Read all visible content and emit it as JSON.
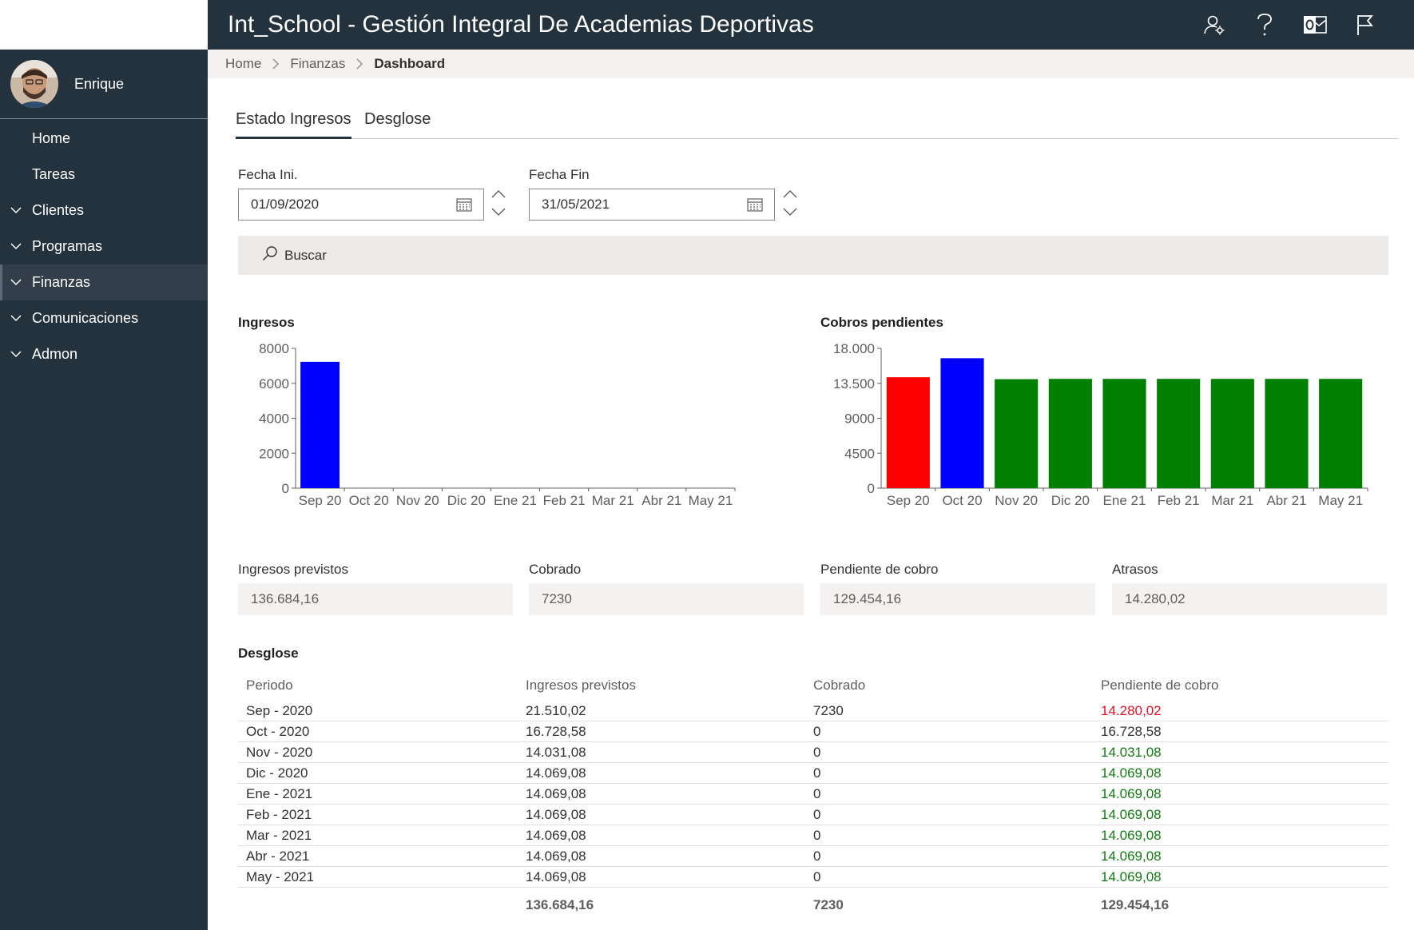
{
  "app": {
    "title": "Int_School - Gestión Integral De Academias Deportivas"
  },
  "user": {
    "name": "Enrique"
  },
  "header_icons": [
    "people-settings-icon",
    "help-icon",
    "outlook-icon",
    "flag-icon"
  ],
  "sidebar": {
    "items": [
      {
        "label": "Home",
        "expandable": false
      },
      {
        "label": "Tareas",
        "expandable": false
      },
      {
        "label": "Clientes",
        "expandable": true
      },
      {
        "label": "Programas",
        "expandable": true
      },
      {
        "label": "Finanzas",
        "expandable": true,
        "active": true
      },
      {
        "label": "Comunicaciones",
        "expandable": true
      },
      {
        "label": "Admon",
        "expandable": true
      }
    ]
  },
  "breadcrumb": {
    "items": [
      "Home",
      "Finanzas"
    ],
    "current": "Dashboard"
  },
  "tabs": [
    {
      "label": "Estado Ingresos",
      "active": true
    },
    {
      "label": "Desglose",
      "active": false
    }
  ],
  "filters": {
    "start": {
      "label": "Fecha Ini.",
      "value": "01/09/2020"
    },
    "end": {
      "label": "Fecha Fin",
      "value": "31/05/2021"
    }
  },
  "search": {
    "label": "Buscar"
  },
  "charts_section": {
    "ingresos_title": "Ingresos",
    "cobros_title": "Cobros pendientes"
  },
  "colors": {
    "blue": "#0000ff",
    "red": "#ff0000",
    "green": "#008000",
    "header": "#24323d"
  },
  "chart_data": [
    {
      "type": "bar",
      "title": "Ingresos",
      "categories": [
        "Sep 20",
        "Oct 20",
        "Nov 20",
        "Dic 20",
        "Ene 21",
        "Feb 21",
        "Mar 21",
        "Abr 21",
        "May 21"
      ],
      "values": [
        7230,
        0,
        0,
        0,
        0,
        0,
        0,
        0,
        0
      ],
      "bar_colors": [
        "#0000ff",
        "#0000ff",
        "#0000ff",
        "#0000ff",
        "#0000ff",
        "#0000ff",
        "#0000ff",
        "#0000ff",
        "#0000ff"
      ],
      "ylim": [
        0,
        8000
      ],
      "yticks": [
        0,
        2000,
        4000,
        6000,
        8000
      ],
      "ytick_labels": [
        "0",
        "2000",
        "4000",
        "6000",
        "8000"
      ]
    },
    {
      "type": "bar",
      "title": "Cobros pendientes",
      "categories": [
        "Sep 20",
        "Oct 20",
        "Nov 20",
        "Dic 20",
        "Ene 21",
        "Feb 21",
        "Mar 21",
        "Abr 21",
        "May 21"
      ],
      "values": [
        14280.02,
        16728.58,
        14031.08,
        14069.08,
        14069.08,
        14069.08,
        14069.08,
        14069.08,
        14069.08
      ],
      "bar_colors": [
        "#ff0000",
        "#0000ff",
        "#008000",
        "#008000",
        "#008000",
        "#008000",
        "#008000",
        "#008000",
        "#008000"
      ],
      "ylim": [
        0,
        18000
      ],
      "yticks": [
        0,
        4500,
        9000,
        13500,
        18000
      ],
      "ytick_labels": [
        "0",
        "4500",
        "9000",
        "13.500",
        "18.000"
      ]
    }
  ],
  "kpis": [
    {
      "label": "Ingresos previstos",
      "value": "136.684,16"
    },
    {
      "label": "Cobrado",
      "value": "7230"
    },
    {
      "label": "Pendiente de cobro",
      "value": "129.454,16"
    },
    {
      "label": "Atrasos",
      "value": "14.280,02"
    }
  ],
  "desglose": {
    "title": "Desglose",
    "headers": [
      "Periodo",
      "Ingresos previstos",
      "Cobrado",
      "Pendiente de cobro"
    ],
    "rows": [
      {
        "periodo": "Sep - 2020",
        "ingresos": "21.510,02",
        "cobrado": "7230",
        "pendiente": "14.280,02",
        "status": "red"
      },
      {
        "periodo": "Oct - 2020",
        "ingresos": "16.728,58",
        "cobrado": "0",
        "pendiente": "16.728,58",
        "status": "neutral"
      },
      {
        "periodo": "Nov - 2020",
        "ingresos": "14.031,08",
        "cobrado": "0",
        "pendiente": "14.031,08",
        "status": "green"
      },
      {
        "periodo": "Dic - 2020",
        "ingresos": "14.069,08",
        "cobrado": "0",
        "pendiente": "14.069,08",
        "status": "green"
      },
      {
        "periodo": "Ene - 2021",
        "ingresos": "14.069,08",
        "cobrado": "0",
        "pendiente": "14.069,08",
        "status": "green"
      },
      {
        "periodo": "Feb - 2021",
        "ingresos": "14.069,08",
        "cobrado": "0",
        "pendiente": "14.069,08",
        "status": "green"
      },
      {
        "periodo": "Mar - 2021",
        "ingresos": "14.069,08",
        "cobrado": "0",
        "pendiente": "14.069,08",
        "status": "green"
      },
      {
        "periodo": "Abr - 2021",
        "ingresos": "14.069,08",
        "cobrado": "0",
        "pendiente": "14.069,08",
        "status": "green"
      },
      {
        "periodo": "May - 2021",
        "ingresos": "14.069,08",
        "cobrado": "0",
        "pendiente": "14.069,08",
        "status": "green"
      }
    ],
    "totals": {
      "ingresos": "136.684,16",
      "cobrado": "7230",
      "pendiente": "129.454,16"
    }
  }
}
